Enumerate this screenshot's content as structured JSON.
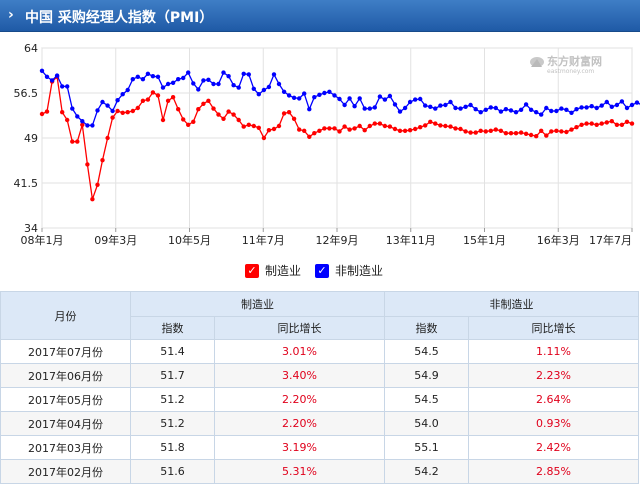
{
  "title": {
    "arrow": "›",
    "text": "中国 采购经理人指数（PMI）"
  },
  "watermark": {
    "brand": "东方财富网",
    "url": "eastmoney.com"
  },
  "colors": {
    "manufacturing": "#ff0000",
    "non_manufacturing": "#0000ff"
  },
  "chart_data": {
    "type": "line",
    "title": "",
    "xlabel": "",
    "ylabel": "",
    "ylim": [
      34,
      64
    ],
    "yticks": [
      34,
      41.5,
      49,
      56.5,
      64
    ],
    "xticks": [
      "08年1月",
      "09年3月",
      "10年5月",
      "11年7月",
      "12年9月",
      "13年11月",
      "15年1月",
      "16年3月",
      "17年7月"
    ],
    "grid": true,
    "legend_position": "bottom",
    "series": [
      {
        "name": "制造业",
        "values": [
          53.0,
          53.4,
          58.4,
          59.2,
          53.3,
          52.0,
          48.4,
          48.4,
          51.2,
          44.6,
          38.8,
          41.2,
          45.3,
          49.0,
          52.4,
          53.5,
          53.2,
          53.3,
          53.5,
          54.0,
          55.2,
          55.4,
          56.6,
          56.1,
          52.0,
          55.2,
          55.8,
          53.8,
          52.1,
          51.2,
          51.7,
          53.8,
          54.7,
          55.2,
          53.9,
          52.9,
          52.2,
          53.4,
          52.9,
          52.0,
          50.9,
          51.2,
          51.0,
          50.7,
          49.0,
          50.3,
          50.5,
          51.0,
          53.1,
          53.3,
          52.2,
          50.4,
          50.2,
          49.2,
          49.8,
          50.2,
          50.6,
          50.6,
          50.6,
          50.1,
          50.9,
          50.4,
          50.6,
          51.0,
          50.3,
          51.0,
          51.4,
          51.4,
          51.0,
          50.9,
          50.5,
          50.2,
          50.2,
          50.3,
          50.5,
          50.8,
          51.1,
          51.7,
          51.4,
          51.1,
          51.0,
          50.9,
          50.6,
          50.5,
          50.1,
          49.9,
          49.9,
          50.2,
          50.1,
          50.2,
          50.4,
          50.2,
          49.8,
          49.8,
          49.8,
          49.9,
          49.7,
          49.5,
          49.3,
          50.2,
          49.4,
          50.1,
          50.2,
          50.1,
          50.0,
          50.4,
          50.8,
          51.2,
          51.4,
          51.4,
          51.2,
          51.4,
          51.6,
          51.8,
          51.2,
          51.2,
          51.7,
          51.4
        ]
      },
      {
        "name": "非制造业",
        "values": [
          60.2,
          59.2,
          58.6,
          59.4,
          57.6,
          57.6,
          53.9,
          52.6,
          51.8,
          51.1,
          51.1,
          53.6,
          55.0,
          54.4,
          53.5,
          55.3,
          56.3,
          57.0,
          58.8,
          59.2,
          58.8,
          59.7,
          59.3,
          59.2,
          57.4,
          58.0,
          58.2,
          58.8,
          59.0,
          59.9,
          58.1,
          57.1,
          58.6,
          58.7,
          58.0,
          58.0,
          59.9,
          59.3,
          57.8,
          57.4,
          59.7,
          59.6,
          57.2,
          56.3,
          57.0,
          57.5,
          59.6,
          58.0,
          56.7,
          56.1,
          55.7,
          55.6,
          56.4,
          53.8,
          55.8,
          56.2,
          56.5,
          56.7,
          56.1,
          55.5,
          54.5,
          55.6,
          54.3,
          55.6,
          53.9,
          53.9,
          54.1,
          55.9,
          55.4,
          56.0,
          54.6,
          53.4,
          54.0,
          55.0,
          55.4,
          55.5,
          54.4,
          54.2,
          53.9,
          54.4,
          54.5,
          55.0,
          54.0,
          53.9,
          54.2,
          54.5,
          53.8,
          53.3,
          53.7,
          54.1,
          54.0,
          53.4,
          53.8,
          53.6,
          53.3,
          53.7,
          54.6,
          53.7,
          53.3,
          52.9,
          54.0,
          53.5,
          53.5,
          53.9,
          53.7,
          53.2,
          53.8,
          54.1,
          54.1,
          54.3,
          54.0,
          54.4,
          55.0,
          54.2,
          54.5,
          55.1,
          54.0,
          54.5,
          54.9,
          54.5
        ]
      }
    ]
  },
  "legend": {
    "manufacturing": "制造业",
    "non_manufacturing": "非制造业",
    "check": "✓"
  },
  "table": {
    "headers": {
      "month": "月份",
      "manufacturing": "制造业",
      "non_manufacturing": "非制造业",
      "index": "指数",
      "yoy": "同比增长"
    },
    "rows": [
      {
        "month": "2017年07月份",
        "m_index": "51.4",
        "m_yoy": "3.01%",
        "n_index": "54.5",
        "n_yoy": "1.11%"
      },
      {
        "month": "2017年06月份",
        "m_index": "51.7",
        "m_yoy": "3.40%",
        "n_index": "54.9",
        "n_yoy": "2.23%"
      },
      {
        "month": "2017年05月份",
        "m_index": "51.2",
        "m_yoy": "2.20%",
        "n_index": "54.5",
        "n_yoy": "2.64%"
      },
      {
        "month": "2017年04月份",
        "m_index": "51.2",
        "m_yoy": "2.20%",
        "n_index": "54.0",
        "n_yoy": "0.93%"
      },
      {
        "month": "2017年03月份",
        "m_index": "51.8",
        "m_yoy": "3.19%",
        "n_index": "55.1",
        "n_yoy": "2.42%"
      },
      {
        "month": "2017年02月份",
        "m_index": "51.6",
        "m_yoy": "5.31%",
        "n_index": "54.2",
        "n_yoy": "2.85%"
      }
    ]
  }
}
